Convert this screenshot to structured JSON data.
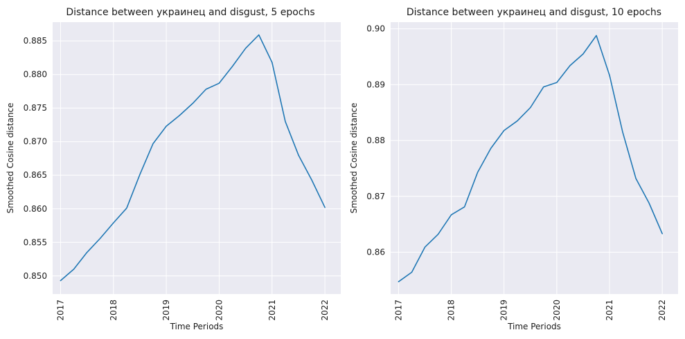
{
  "chart_data": [
    {
      "type": "line",
      "title": "Distance between украинец and disgust, 5 epochs",
      "xlabel": "Time Periods",
      "ylabel": "Smoothed Cosine distance",
      "grid": true,
      "xlim": [
        2016.85,
        2022.3
      ],
      "ylim": [
        0.8473,
        0.8878
      ],
      "x_ticks": [
        "2017",
        "2018",
        "2019",
        "2020",
        "2021",
        "2022"
      ],
      "y_ticks": [
        "0.850",
        "0.855",
        "0.860",
        "0.865",
        "0.870",
        "0.875",
        "0.880",
        "0.885"
      ],
      "series": [
        {
          "color": "#1f77b4",
          "x": [
            2017.0,
            2017.25,
            2017.5,
            2017.75,
            2018.0,
            2018.25,
            2018.5,
            2018.75,
            2019.0,
            2019.25,
            2019.5,
            2019.75,
            2020.0,
            2020.25,
            2020.5,
            2020.75,
            2021.0,
            2021.25,
            2021.5,
            2021.75,
            2022.0
          ],
          "y": [
            0.8493,
            0.851,
            0.8535,
            0.8556,
            0.8579,
            0.8601,
            0.8651,
            0.8697,
            0.8723,
            0.8739,
            0.8757,
            0.8778,
            0.8787,
            0.8812,
            0.8839,
            0.8859,
            0.8818,
            0.873,
            0.868,
            0.8643,
            0.8602
          ]
        }
      ]
    },
    {
      "type": "line",
      "title": "Distance between украинец and disgust, 10 epochs",
      "xlabel": "Time Periods",
      "ylabel": "Smoothed Cosine distance",
      "grid": true,
      "xlim": [
        2016.85,
        2022.3
      ],
      "ylim": [
        0.8525,
        0.9012
      ],
      "x_ticks": [
        "2017",
        "2018",
        "2019",
        "2020",
        "2021",
        "2022"
      ],
      "y_ticks": [
        "0.86",
        "0.87",
        "0.88",
        "0.89",
        "0.90"
      ],
      "series": [
        {
          "color": "#1f77b4",
          "x": [
            2017.0,
            2017.25,
            2017.5,
            2017.75,
            2018.0,
            2018.25,
            2018.5,
            2018.75,
            2019.0,
            2019.25,
            2019.5,
            2019.75,
            2020.0,
            2020.25,
            2020.5,
            2020.75,
            2021.0,
            2021.25,
            2021.5,
            2021.75,
            2022.0
          ],
          "y": [
            0.8547,
            0.8564,
            0.8609,
            0.8632,
            0.8667,
            0.8681,
            0.8743,
            0.8786,
            0.8818,
            0.8835,
            0.8859,
            0.8896,
            0.8904,
            0.8934,
            0.8955,
            0.8988,
            0.8917,
            0.8815,
            0.8732,
            0.8688,
            0.8633
          ]
        }
      ]
    }
  ]
}
